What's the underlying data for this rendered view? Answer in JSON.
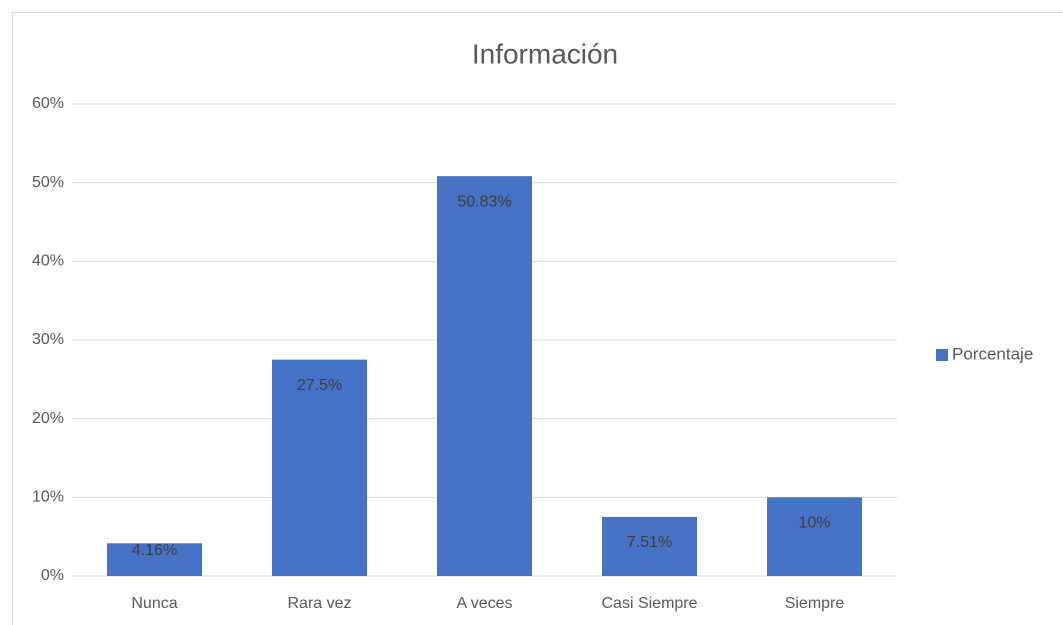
{
  "chart_data": {
    "type": "bar",
    "title": "Información",
    "categories": [
      "Nunca",
      "Rara vez",
      "A veces",
      "Casi Siempre",
      "Siempre"
    ],
    "series": [
      {
        "name": "Porcentaje",
        "color": "#4472c4",
        "values": [
          4.16,
          27.5,
          50.83,
          7.51,
          10
        ],
        "value_labels": [
          "4.16%",
          "27.5%",
          "50.83%",
          "7.51%",
          "10%"
        ]
      }
    ],
    "ylim": [
      0,
      60
    ],
    "yticks": [
      {
        "value": 0,
        "label": "0%"
      },
      {
        "value": 10,
        "label": "10%"
      },
      {
        "value": 20,
        "label": "20%"
      },
      {
        "value": 30,
        "label": "30%"
      },
      {
        "value": 40,
        "label": "40%"
      },
      {
        "value": 50,
        "label": "50%"
      },
      {
        "value": 60,
        "label": "60%"
      }
    ],
    "grid": true,
    "legend": "right"
  }
}
